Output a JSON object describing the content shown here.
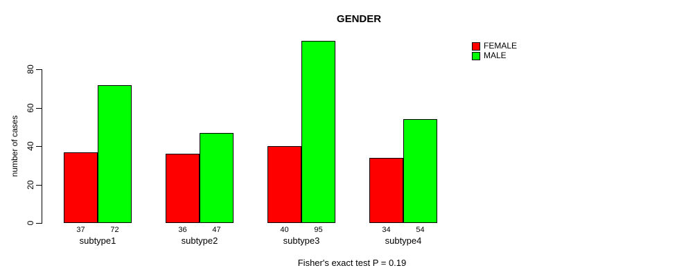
{
  "chart_data": {
    "type": "bar",
    "title": "GENDER",
    "xlabel": "",
    "ylabel": "number of cases",
    "categories": [
      "subtype1",
      "subtype2",
      "subtype3",
      "subtype4"
    ],
    "series": [
      {
        "name": "FEMALE",
        "color": "#ff0000",
        "values": [
          37,
          36,
          40,
          34
        ]
      },
      {
        "name": "MALE",
        "color": "#00ff00",
        "values": [
          72,
          47,
          95,
          54
        ]
      }
    ],
    "yticks": [
      0,
      20,
      40,
      60,
      80
    ],
    "ylim": [
      0,
      101
    ],
    "grid": false,
    "legend_position": "top-right",
    "bar_value_labels_shown": true,
    "caption": "Fisher's exact test P = 0.19",
    "bar_border_color": "#000000",
    "axis_color": "#000000",
    "text_color": "#000000",
    "background_color": "#ffffff"
  }
}
